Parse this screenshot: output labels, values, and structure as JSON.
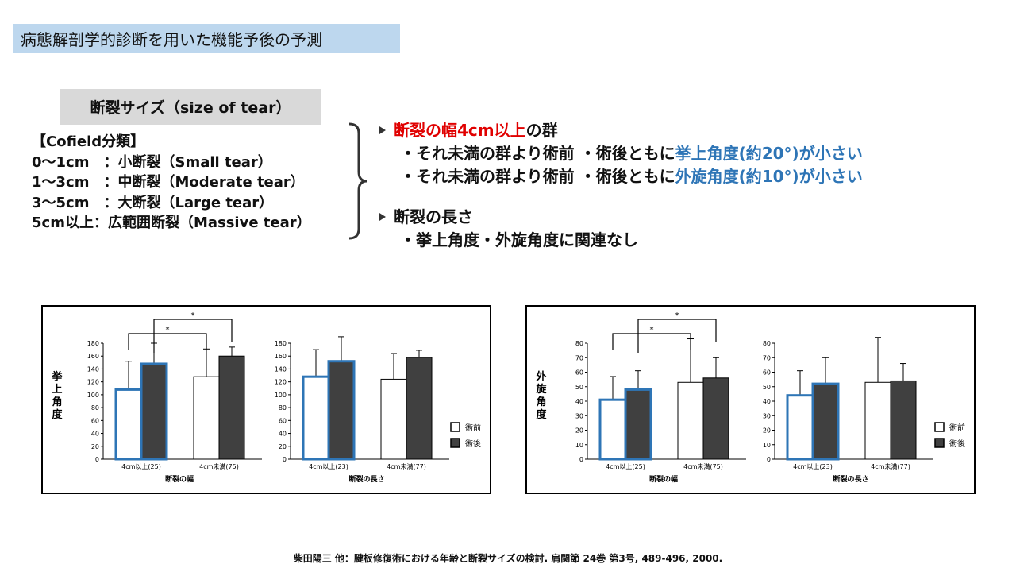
{
  "title": "病態解剖学的診断を用いた機能予後の予測",
  "section_label": "断裂サイズ（size of tear）",
  "cofield": {
    "heading": "【Cofield分類】",
    "rows": [
      "0～1cm　：小断裂（Small tear）",
      "1～3cm　：中断裂（Moderate tear）",
      "3～5cm　：大断裂（Large tear）",
      "5cm以上：広範囲断裂（Massive tear）"
    ]
  },
  "findings": {
    "width_head_red": "断裂の幅4cm以上",
    "width_head_rest": "の群",
    "width_line1_pre": "・それ未満の群より術前 ・術後ともに",
    "width_line1_hl": "挙上角度(約20°)が小さい",
    "width_line2_pre": "・それ未満の群より術前 ・術後ともに",
    "width_line2_hl": "外旋角度(約10°)が小さい",
    "length_head": "断裂の長さ",
    "length_line": "・挙上角度・外旋角度に関連なし"
  },
  "citation": "柴田陽三 他：腱板修復術における年齢と断裂サイズの検討. 肩関節 24巻 第3号, 489-496, 2000.",
  "colors": {
    "highlight_red": "#e00000",
    "highlight_blue": "#2e75b6",
    "pre_bar": "#ffffff",
    "post_bar": "#404040",
    "outline_blue": "#2e75b6"
  },
  "chart_data": [
    {
      "type": "bar",
      "ylabel": "挙上角度",
      "ylim": [
        0,
        180
      ],
      "yticks": [
        0,
        20,
        40,
        60,
        80,
        100,
        120,
        140,
        160,
        180
      ],
      "legend": [
        "術前",
        "術後"
      ],
      "legend_position": "right",
      "groups": [
        {
          "xlabel": "断裂の幅",
          "categories": [
            "4cm以上(25)",
            "4cm未満(75)"
          ],
          "series": [
            {
              "name": "術前",
              "values": [
                108,
                128
              ],
              "errors": [
                44,
                43
              ]
            },
            {
              "name": "術後",
              "values": [
                148,
                160
              ],
              "errors": [
                32,
                14
              ]
            }
          ],
          "highlight_category": 0,
          "significance": [
            {
              "between": [
                "4cm以上(25)術前",
                "4cm未満(75)術前"
              ],
              "label": "*"
            },
            {
              "between": [
                "4cm以上(25)術後",
                "4cm未満(75)術後"
              ],
              "label": "*"
            }
          ]
        },
        {
          "xlabel": "断裂の長さ",
          "categories": [
            "4cm以上(23)",
            "4cm未満(77)"
          ],
          "series": [
            {
              "name": "術前",
              "values": [
                128,
                124
              ],
              "errors": [
                42,
                40
              ]
            },
            {
              "name": "術後",
              "values": [
                152,
                158
              ],
              "errors": [
                38,
                11
              ]
            }
          ],
          "highlight_category": 0,
          "significance": []
        }
      ]
    },
    {
      "type": "bar",
      "ylabel": "外旋角度",
      "ylim": [
        0,
        80
      ],
      "yticks": [
        0,
        10,
        20,
        30,
        40,
        50,
        60,
        70,
        80
      ],
      "legend": [
        "術前",
        "術後"
      ],
      "legend_position": "right",
      "groups": [
        {
          "xlabel": "断裂の幅",
          "categories": [
            "4cm以上(25)",
            "4cm未満(75)"
          ],
          "series": [
            {
              "name": "術前",
              "values": [
                41,
                53
              ],
              "errors": [
                16,
                30
              ]
            },
            {
              "name": "術後",
              "values": [
                48,
                56
              ],
              "errors": [
                13,
                14
              ]
            }
          ],
          "highlight_category": 0,
          "significance": [
            {
              "between": [
                "4cm以上(25)術前",
                "4cm未満(75)術前"
              ],
              "label": "*"
            },
            {
              "between": [
                "4cm以上(25)術後",
                "4cm未満(75)術後"
              ],
              "label": "*"
            }
          ]
        },
        {
          "xlabel": "断裂の長さ",
          "categories": [
            "4cm以上(23)",
            "4cm未満(77)"
          ],
          "series": [
            {
              "name": "術前",
              "values": [
                44,
                53
              ],
              "errors": [
                17,
                31
              ]
            },
            {
              "name": "術後",
              "values": [
                52,
                54
              ],
              "errors": [
                18,
                12
              ]
            }
          ],
          "highlight_category": 0,
          "significance": []
        }
      ]
    }
  ]
}
